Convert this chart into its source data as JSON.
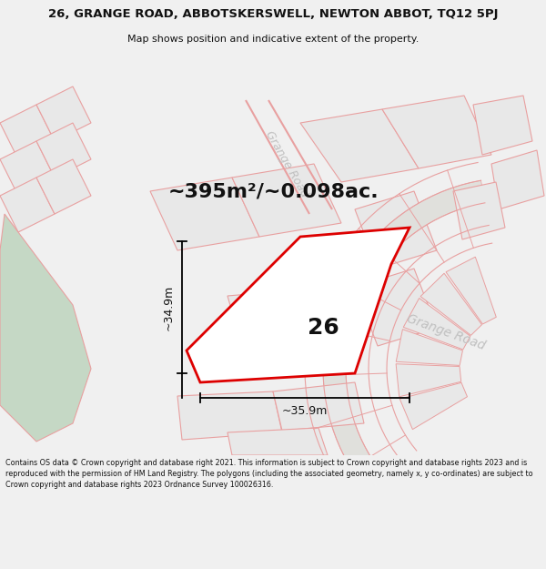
{
  "title_line1": "26, GRANGE ROAD, ABBOTSKERSWELL, NEWTON ABBOT, TQ12 5PJ",
  "title_line2": "Map shows position and indicative extent of the property.",
  "area_text": "~395m²/~0.098ac.",
  "label_26": "26",
  "dim_width": "~35.9m",
  "dim_height": "~34.9m",
  "road_label_top": "Grange Road",
  "road_label_right": "Grange Road",
  "footer_text": "Contains OS data © Crown copyright and database right 2021. This information is subject to Crown copyright and database rights 2023 and is reproduced with the permission of HM Land Registry. The polygons (including the associated geometry, namely x, y co-ordinates) are subject to Crown copyright and database rights 2023 Ordnance Survey 100026316.",
  "bg_color": "#f0f0f0",
  "map_bg": "#ffffff",
  "plot_stroke": "#dd0000",
  "green_fill": "#c5d8c5",
  "pink_line": "#e8a0a0",
  "parcel_fill": "#e8e8e8",
  "road_fill": "#e0e0dc",
  "white_fill": "#ffffff",
  "dim_line_color": "#000000",
  "text_color": "#111111",
  "road_text_color": "#c0c0c0",
  "title_fontsize": 9.5,
  "subtitle_fontsize": 8.0,
  "area_fontsize": 16,
  "label_fontsize": 18,
  "dim_fontsize": 9,
  "road_fontsize": 9,
  "footer_fontsize": 5.8
}
